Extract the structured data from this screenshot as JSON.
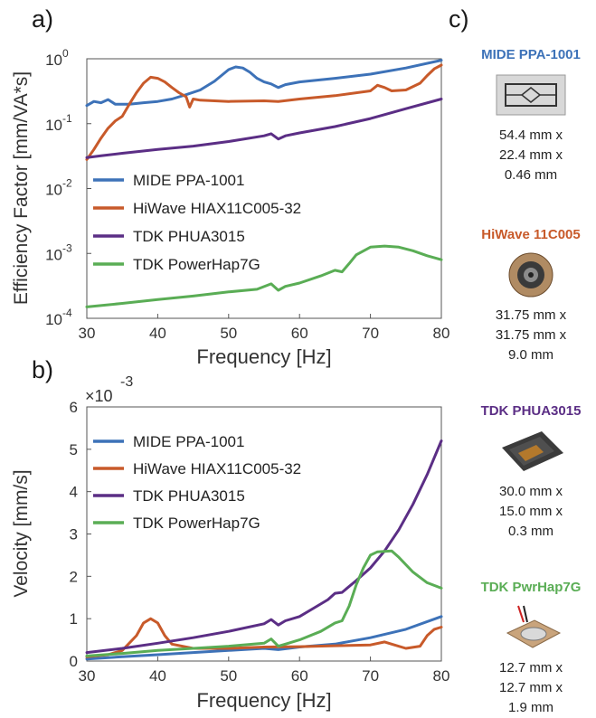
{
  "panel_labels": {
    "a": "a)",
    "b": "b)",
    "c": "c)"
  },
  "chart_data": [
    {
      "type": "line",
      "panel": "a)",
      "xlabel": "Frequency [Hz]",
      "ylabel": "Efficiency Factor [mm/VA*s]",
      "xlim": [
        30,
        80
      ],
      "ylim": [
        0.0001,
        1
      ],
      "yscale": "log",
      "xticks": [
        "30",
        "40",
        "50",
        "60",
        "70",
        "80"
      ],
      "yticks": [
        {
          "base": "10",
          "exp": "0"
        },
        {
          "base": "10",
          "exp": "-1"
        },
        {
          "base": "10",
          "exp": "-2"
        },
        {
          "base": "10",
          "exp": "-3"
        },
        {
          "base": "10",
          "exp": "-4"
        }
      ],
      "grid": false,
      "legend_position": "left",
      "series": [
        {
          "name": "MIDE PPA-1001",
          "color": "#3d72b8",
          "points": [
            [
              30,
              0.19
            ],
            [
              31,
              0.22
            ],
            [
              32,
              0.21
            ],
            [
              33,
              0.235
            ],
            [
              34,
              0.2
            ],
            [
              36,
              0.2
            ],
            [
              38,
              0.21
            ],
            [
              40,
              0.22
            ],
            [
              42,
              0.24
            ],
            [
              44,
              0.28
            ],
            [
              46,
              0.33
            ],
            [
              48,
              0.45
            ],
            [
              50,
              0.68
            ],
            [
              51,
              0.75
            ],
            [
              52,
              0.72
            ],
            [
              53,
              0.62
            ],
            [
              54,
              0.5
            ],
            [
              55,
              0.44
            ],
            [
              56,
              0.41
            ],
            [
              57,
              0.36
            ],
            [
              58,
              0.4
            ],
            [
              60,
              0.44
            ],
            [
              65,
              0.5
            ],
            [
              70,
              0.58
            ],
            [
              75,
              0.72
            ],
            [
              80,
              0.95
            ]
          ]
        },
        {
          "name": "HiWave HIAX11C005-32",
          "color": "#c85a2a",
          "points": [
            [
              30,
              0.028
            ],
            [
              31,
              0.04
            ],
            [
              32,
              0.06
            ],
            [
              33,
              0.085
            ],
            [
              34,
              0.11
            ],
            [
              35,
              0.13
            ],
            [
              36,
              0.2
            ],
            [
              37,
              0.3
            ],
            [
              38,
              0.42
            ],
            [
              39,
              0.52
            ],
            [
              40,
              0.5
            ],
            [
              41,
              0.44
            ],
            [
              42,
              0.36
            ],
            [
              43,
              0.3
            ],
            [
              44,
              0.26
            ],
            [
              44.5,
              0.18
            ],
            [
              45,
              0.24
            ],
            [
              46,
              0.23
            ],
            [
              50,
              0.22
            ],
            [
              55,
              0.225
            ],
            [
              57,
              0.22
            ],
            [
              60,
              0.24
            ],
            [
              65,
              0.27
            ],
            [
              70,
              0.32
            ],
            [
              71,
              0.39
            ],
            [
              72,
              0.36
            ],
            [
              73,
              0.32
            ],
            [
              75,
              0.33
            ],
            [
              77,
              0.42
            ],
            [
              78,
              0.55
            ],
            [
              79,
              0.7
            ],
            [
              80,
              0.8
            ]
          ]
        },
        {
          "name": "TDK PHUA3015",
          "color": "#5b2e85",
          "points": [
            [
              30,
              0.03
            ],
            [
              32,
              0.032
            ],
            [
              35,
              0.035
            ],
            [
              40,
              0.04
            ],
            [
              45,
              0.045
            ],
            [
              50,
              0.053
            ],
            [
              55,
              0.065
            ],
            [
              56,
              0.07
            ],
            [
              57,
              0.058
            ],
            [
              58,
              0.065
            ],
            [
              60,
              0.072
            ],
            [
              65,
              0.09
            ],
            [
              70,
              0.12
            ],
            [
              75,
              0.17
            ],
            [
              80,
              0.24
            ]
          ]
        },
        {
          "name": "TDK PowerHap7G",
          "color": "#5aad55",
          "points": [
            [
              30,
              0.00015
            ],
            [
              35,
              0.00017
            ],
            [
              40,
              0.000195
            ],
            [
              45,
              0.00022
            ],
            [
              50,
              0.000255
            ],
            [
              54,
              0.00028
            ],
            [
              56,
              0.00034
            ],
            [
              57,
              0.00027
            ],
            [
              58,
              0.00031
            ],
            [
              60,
              0.00035
            ],
            [
              63,
              0.00045
            ],
            [
              65,
              0.00055
            ],
            [
              66,
              0.00052
            ],
            [
              67,
              0.0007
            ],
            [
              68,
              0.00095
            ],
            [
              70,
              0.00125
            ],
            [
              72,
              0.0013
            ],
            [
              74,
              0.00125
            ],
            [
              76,
              0.0011
            ],
            [
              78,
              0.00092
            ],
            [
              80,
              0.0008
            ]
          ]
        }
      ]
    },
    {
      "type": "line",
      "panel": "b)",
      "xlabel": "Frequency [Hz]",
      "ylabel": "Velocity [mm/s]",
      "multiplier": {
        "base": "×10",
        "exp": "-3"
      },
      "xlim": [
        30,
        80
      ],
      "ylim": [
        0,
        6
      ],
      "xticks": [
        "30",
        "40",
        "50",
        "60",
        "70",
        "80"
      ],
      "yticks": [
        "0",
        "1",
        "2",
        "3",
        "4",
        "5",
        "6"
      ],
      "grid": false,
      "legend_position": "top-left",
      "series": [
        {
          "name": "MIDE PPA-1001",
          "color": "#3d72b8",
          "points": [
            [
              30,
              0.05
            ],
            [
              35,
              0.1
            ],
            [
              40,
              0.15
            ],
            [
              45,
              0.2
            ],
            [
              50,
              0.25
            ],
            [
              55,
              0.3
            ],
            [
              57,
              0.27
            ],
            [
              60,
              0.33
            ],
            [
              65,
              0.4
            ],
            [
              70,
              0.55
            ],
            [
              75,
              0.75
            ],
            [
              80,
              1.05
            ]
          ]
        },
        {
          "name": "HiWave HIAX11C005-32",
          "color": "#c85a2a",
          "points": [
            [
              30,
              0.1
            ],
            [
              33,
              0.15
            ],
            [
              35,
              0.25
            ],
            [
              37,
              0.6
            ],
            [
              38,
              0.9
            ],
            [
              39,
              1.0
            ],
            [
              40,
              0.9
            ],
            [
              41,
              0.6
            ],
            [
              42,
              0.4
            ],
            [
              45,
              0.3
            ],
            [
              50,
              0.3
            ],
            [
              55,
              0.33
            ],
            [
              60,
              0.34
            ],
            [
              65,
              0.36
            ],
            [
              70,
              0.38
            ],
            [
              72,
              0.45
            ],
            [
              73,
              0.4
            ],
            [
              75,
              0.3
            ],
            [
              77,
              0.35
            ],
            [
              78,
              0.6
            ],
            [
              79,
              0.75
            ],
            [
              80,
              0.8
            ]
          ]
        },
        {
          "name": "TDK PHUA3015",
          "color": "#5b2e85",
          "points": [
            [
              30,
              0.2
            ],
            [
              35,
              0.3
            ],
            [
              40,
              0.42
            ],
            [
              45,
              0.55
            ],
            [
              50,
              0.7
            ],
            [
              55,
              0.88
            ],
            [
              56,
              0.98
            ],
            [
              57,
              0.85
            ],
            [
              58,
              0.95
            ],
            [
              60,
              1.05
            ],
            [
              62,
              1.25
            ],
            [
              64,
              1.45
            ],
            [
              65,
              1.6
            ],
            [
              66,
              1.62
            ],
            [
              68,
              1.9
            ],
            [
              70,
              2.2
            ],
            [
              72,
              2.6
            ],
            [
              74,
              3.1
            ],
            [
              76,
              3.7
            ],
            [
              78,
              4.4
            ],
            [
              80,
              5.2
            ]
          ]
        },
        {
          "name": "TDK PowerHap7G",
          "color": "#5aad55",
          "points": [
            [
              30,
              0.12
            ],
            [
              35,
              0.18
            ],
            [
              40,
              0.25
            ],
            [
              45,
              0.3
            ],
            [
              50,
              0.35
            ],
            [
              55,
              0.42
            ],
            [
              56,
              0.52
            ],
            [
              57,
              0.35
            ],
            [
              58,
              0.4
            ],
            [
              60,
              0.5
            ],
            [
              63,
              0.7
            ],
            [
              65,
              0.9
            ],
            [
              66,
              0.95
            ],
            [
              67,
              1.3
            ],
            [
              68,
              1.8
            ],
            [
              69,
              2.2
            ],
            [
              70,
              2.5
            ],
            [
              71,
              2.58
            ],
            [
              73,
              2.6
            ],
            [
              74,
              2.45
            ],
            [
              76,
              2.1
            ],
            [
              78,
              1.85
            ],
            [
              80,
              1.72
            ]
          ]
        }
      ]
    }
  ],
  "devices": [
    {
      "name": "MIDE PPA-1001",
      "color": "#3d72b8",
      "dims": [
        "54.4 mm x",
        "22.4 mm x",
        "0.46 mm"
      ]
    },
    {
      "name": "HiWave 11C005",
      "color": "#c85a2a",
      "dims": [
        "31.75 mm x",
        "31.75 mm x",
        "9.0 mm"
      ]
    },
    {
      "name": "TDK PHUA3015",
      "color": "#5b2e85",
      "dims": [
        "30.0 mm x",
        "15.0 mm x",
        "0.3 mm"
      ]
    },
    {
      "name": "TDK PwrHap7G",
      "color": "#5aad55",
      "dims": [
        "12.7 mm x",
        "12.7 mm x",
        "1.9 mm"
      ]
    }
  ]
}
